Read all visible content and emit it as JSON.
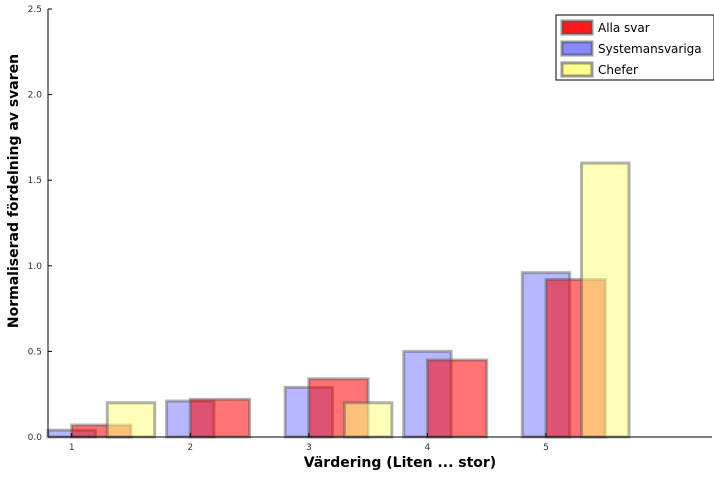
{
  "chart_data": {
    "type": "bar",
    "title": "",
    "xlabel": "Värdering (Liten ... stor)",
    "ylabel": "Normaliserad fördelning av svaren",
    "categories": [
      "1",
      "2",
      "3",
      "4",
      "5"
    ],
    "x_ticks": [
      "1",
      "2",
      "3",
      "4",
      "5"
    ],
    "y_ticks": [
      "0.0",
      "0.5",
      "1.0",
      "1.5",
      "2.0",
      "2.5"
    ],
    "ylim": [
      0,
      2.5
    ],
    "xlim": [
      0.8,
      6.4
    ],
    "grid": false,
    "legend_position": "top-right",
    "series": [
      {
        "name": "Systemansvariga",
        "color": "#7b7bff",
        "x_left": [
          0.8,
          1.8,
          2.8,
          3.8,
          4.8
        ],
        "width": 0.4,
        "values": [
          0.04,
          0.21,
          0.29,
          0.5,
          0.96
        ]
      },
      {
        "name": "Alla svar",
        "color": "#ff0000",
        "x_left": [
          1.0,
          2.0,
          3.0,
          4.0,
          5.0
        ],
        "width": 0.5,
        "values": [
          0.07,
          0.22,
          0.34,
          0.45,
          0.92
        ]
      },
      {
        "name": "Chefer",
        "color": "#ffff80",
        "x_left": [
          1.3,
          2.3,
          3.3,
          4.3,
          5.3
        ],
        "width": 0.4,
        "values": [
          0.2,
          0.0,
          0.2,
          0.0,
          1.6
        ]
      }
    ],
    "legend": [
      "Alla svar",
      "Systemansvariga",
      "Chefer"
    ]
  }
}
